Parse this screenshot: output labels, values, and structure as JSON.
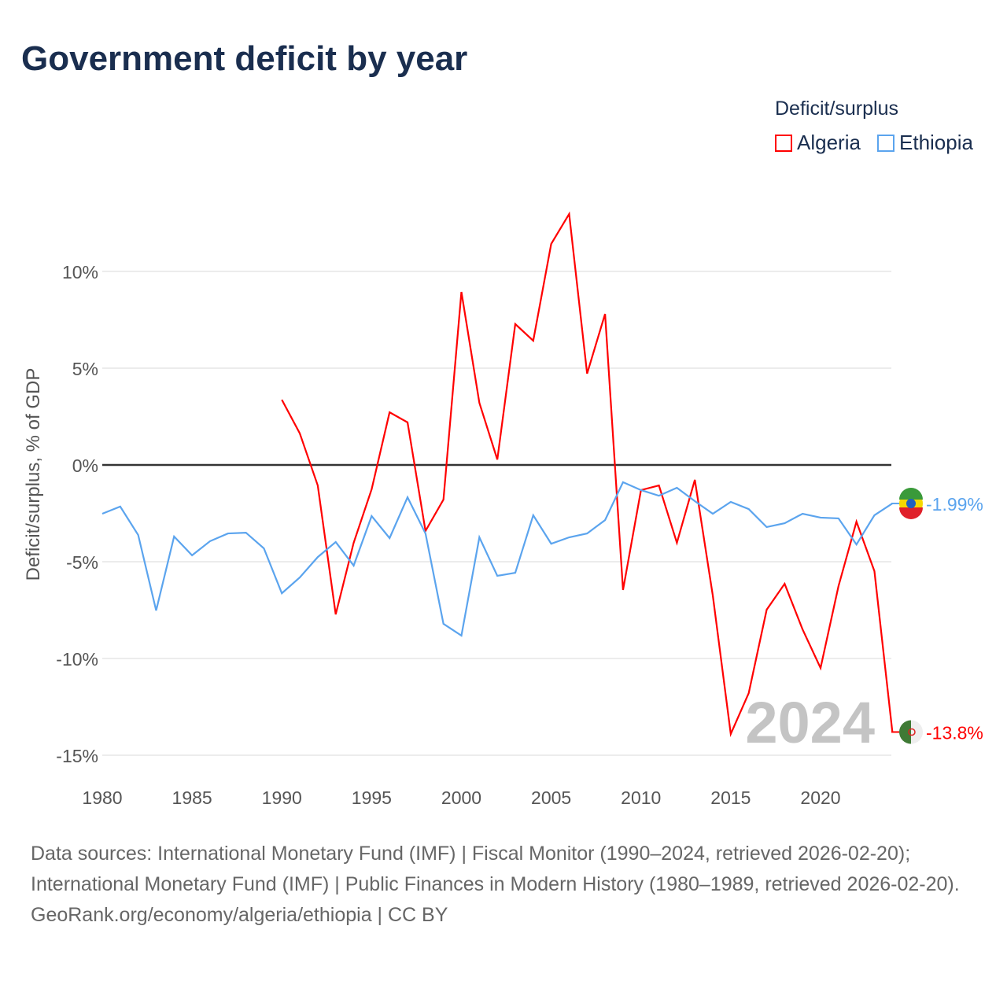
{
  "title": "Government deficit by year",
  "legend": {
    "title": "Deficit/surplus",
    "items": [
      {
        "name": "Algeria",
        "color": "#ff0000"
      },
      {
        "name": "Ethiopia",
        "color": "#5ba4ee"
      }
    ]
  },
  "footer": {
    "line1": "Data sources: International Monetary Fund (IMF) | Fiscal Monitor (1990–2024, retrieved 2026-02-20); International Monetary Fund (IMF) | Public Finances in Modern History (1980–1989, retrieved 2026-02-20).",
    "line2": "GeoRank.org/economy/algeria/ethiopia | CC BY"
  },
  "chart_data": {
    "type": "line",
    "title": "Government deficit by year",
    "xlabel": "",
    "ylabel": "Deficit/surplus, % of GDP",
    "xlim": [
      1980,
      2024
    ],
    "ylim": [
      -16,
      13
    ],
    "yticks": [
      10,
      5,
      0,
      -5,
      -10,
      -15
    ],
    "ytick_labels": [
      "10%",
      "5%",
      "0%",
      "-5%",
      "-10%",
      "-15%"
    ],
    "xticks": [
      1980,
      1985,
      1990,
      1995,
      2000,
      2005,
      2010,
      2015,
      2020
    ],
    "xtick_labels": [
      "1980",
      "1985",
      "1990",
      "1995",
      "2000",
      "2005",
      "2010",
      "2015",
      "2020"
    ],
    "watermark": "2024",
    "series": [
      {
        "name": "Algeria",
        "color": "#ff0000",
        "end_label": "-13.8%",
        "start": 1990,
        "values": [
          3.37,
          1.63,
          -1.06,
          -7.72,
          -4.02,
          -1.26,
          2.72,
          2.2,
          -3.41,
          -1.79,
          8.94,
          3.21,
          0.28,
          7.28,
          6.42,
          11.42,
          12.97,
          4.72,
          7.8,
          -6.46,
          -1.3,
          -1.06,
          -4.02,
          -0.77,
          -6.75,
          -13.9,
          -11.79,
          -7.48,
          -6.14,
          -8.5,
          -10.49,
          -6.26,
          -2.93,
          -5.49,
          -13.8
        ]
      },
      {
        "name": "Ethiopia",
        "color": "#5ba4ee",
        "end_label": "-1.99%",
        "start": 1980,
        "values": [
          -2.52,
          -2.15,
          -3.62,
          -7.52,
          -3.7,
          -4.67,
          -3.94,
          -3.54,
          -3.5,
          -4.31,
          -6.63,
          -5.81,
          -4.76,
          -3.98,
          -5.2,
          -2.64,
          -3.78,
          -1.67,
          -3.54,
          -8.21,
          -8.82,
          -3.74,
          -5.73,
          -5.57,
          -2.6,
          -4.07,
          -3.74,
          -3.54,
          -2.85,
          -0.89,
          -1.3,
          -1.59,
          -1.18,
          -1.87,
          -2.52,
          -1.91,
          -2.28,
          -3.21,
          -3.01,
          -2.52,
          -2.72,
          -2.76,
          -4.11,
          -2.6,
          -1.99
        ]
      }
    ]
  }
}
